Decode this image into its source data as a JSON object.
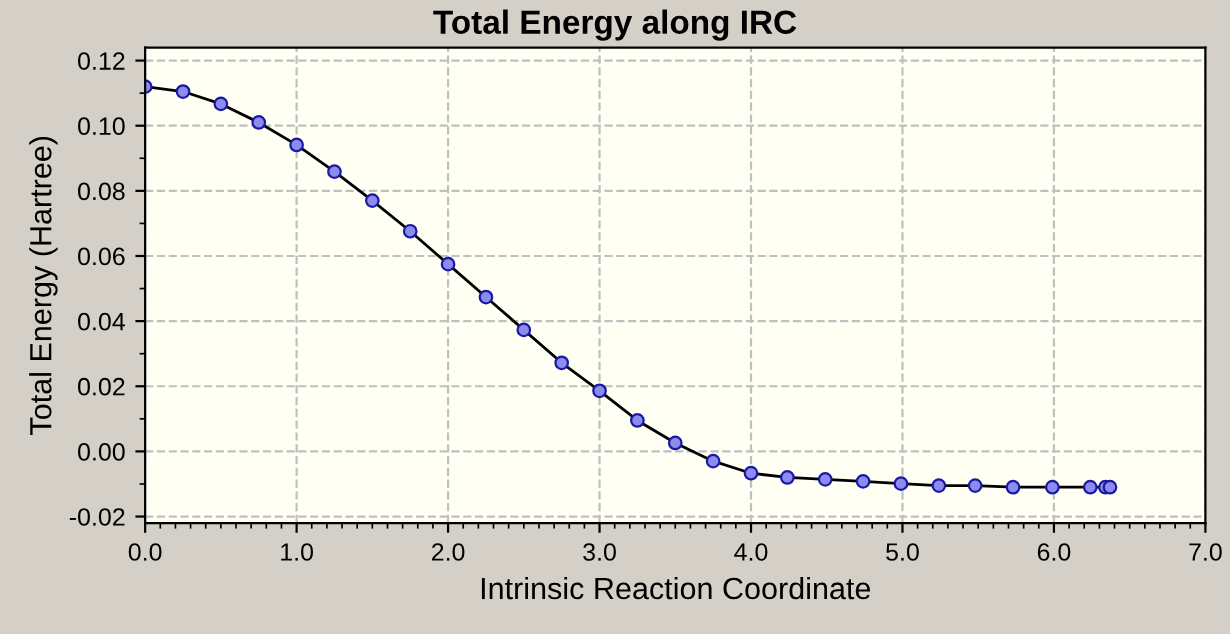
{
  "chart_data": {
    "type": "line",
    "title": "Total Energy along IRC",
    "xlabel": "Intrinsic Reaction Coordinate",
    "ylabel": "Total Energy (Hartree)",
    "x": [
      0,
      0.25,
      0.5,
      0.75,
      1.0,
      1.25,
      1.5,
      1.75,
      2.0,
      2.25,
      2.5,
      2.75,
      3.0,
      3.25,
      3.5,
      3.75,
      4.0,
      4.24,
      4.49,
      4.74,
      4.99,
      5.24,
      5.48,
      5.73,
      5.99,
      6.24,
      6.34,
      6.37
    ],
    "series": [
      {
        "color": "#000000",
        "values": [
          0.112,
          0.1105,
          0.1067,
          0.101,
          0.0941,
          0.0859,
          0.077,
          0.0676,
          0.0575,
          0.0474,
          0.0373,
          0.0272,
          0.0186,
          0.0095,
          0.0026,
          -0.003,
          -0.0067,
          -0.008,
          -0.0086,
          -0.0092,
          -0.0099,
          -0.0105,
          -0.0105,
          -0.011,
          -0.011,
          -0.011,
          -0.011,
          -0.011
        ]
      }
    ],
    "xlim": [
      0,
      7
    ],
    "xticks": [
      {
        "value": 0,
        "label": "0.0"
      },
      {
        "value": 1,
        "label": "1.0"
      },
      {
        "value": 2,
        "label": "2.0"
      },
      {
        "value": 3,
        "label": "3.0"
      },
      {
        "value": 4,
        "label": "4.0"
      },
      {
        "value": 5,
        "label": "5.0"
      },
      {
        "value": 6,
        "label": "6.0"
      },
      {
        "value": 7,
        "label": "7.0"
      }
    ],
    "ylim": [
      -0.022,
      0.124
    ],
    "yticks": [
      {
        "value": -0.02,
        "label": "-0.02"
      },
      {
        "value": 0,
        "label": "0.00"
      },
      {
        "value": 0.02,
        "label": "0.02"
      },
      {
        "value": 0.04,
        "label": "0.04"
      },
      {
        "value": 0.06,
        "label": "0.06"
      },
      {
        "value": 0.08,
        "label": "0.08"
      },
      {
        "value": 0.1,
        "label": "0.10"
      },
      {
        "value": 0.12,
        "label": "0.12"
      }
    ],
    "grid": true,
    "marker": "circle",
    "line_style": "solid"
  }
}
